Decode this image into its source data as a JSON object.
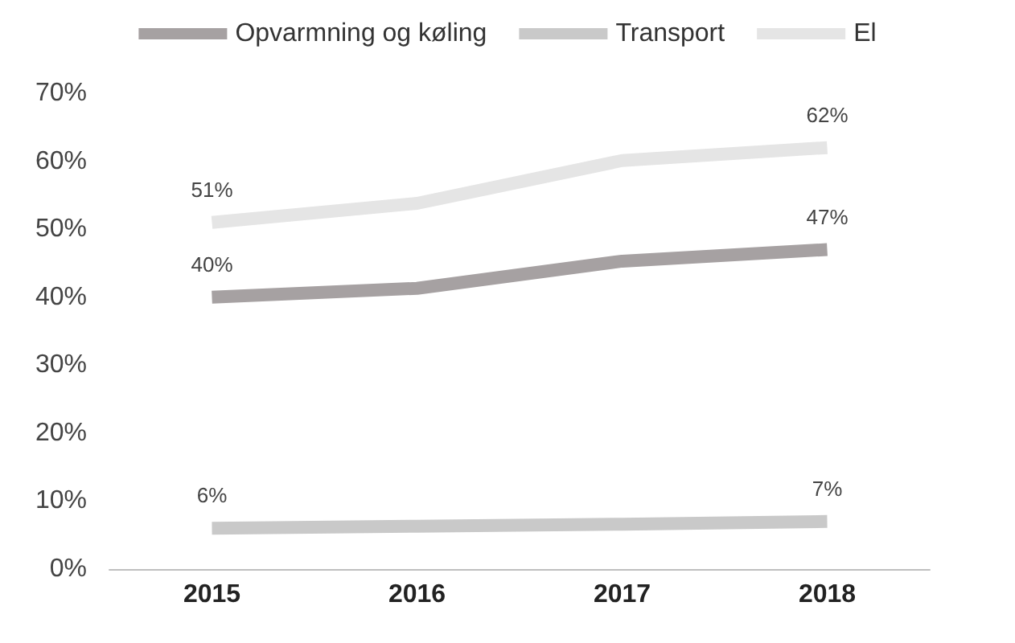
{
  "chart_data": {
    "type": "line",
    "categories": [
      "2015",
      "2016",
      "2017",
      "2018"
    ],
    "series": [
      {
        "name": "Opvarmning og køling",
        "color": "#a6a1a2",
        "values": [
          40,
          41.3,
          45.3,
          47
        ],
        "value_labels": [
          "40%",
          null,
          null,
          "47%"
        ]
      },
      {
        "name": "Transport",
        "color": "#c9c9c9",
        "values": [
          6,
          6.3,
          6.6,
          7
        ],
        "value_labels": [
          "6%",
          null,
          null,
          "7%"
        ]
      },
      {
        "name": "El",
        "color": "#e5e5e5",
        "values": [
          51,
          53.8,
          60.1,
          62
        ],
        "value_labels": [
          "51%",
          null,
          null,
          "62%"
        ]
      }
    ],
    "ylim": [
      0,
      70
    ],
    "yticks": [
      {
        "value": 0,
        "label": "0%"
      },
      {
        "value": 10,
        "label": "10%"
      },
      {
        "value": 20,
        "label": "20%"
      },
      {
        "value": 30,
        "label": "30%"
      },
      {
        "value": 40,
        "label": "40%"
      },
      {
        "value": 50,
        "label": "50%"
      },
      {
        "value": 60,
        "label": "60%"
      },
      {
        "value": 70,
        "label": "70%"
      }
    ],
    "legend": "top",
    "grid": false,
    "marker": "none",
    "line_style": "solid"
  }
}
